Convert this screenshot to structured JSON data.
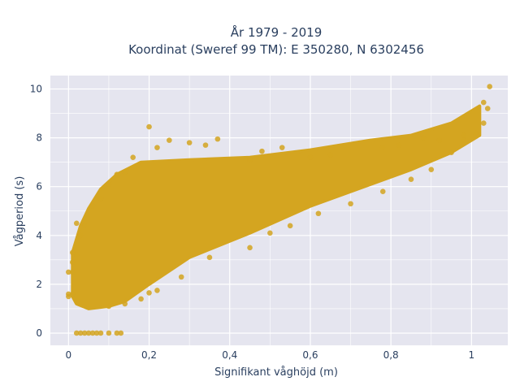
{
  "chart_data": {
    "type": "scatter",
    "title_line1": "År 1979 - 2019",
    "title_line2": "Koordinat (Sweref 99 TM): E 350280, N 6302456",
    "xlabel": "Signifikant våghöjd (m)",
    "ylabel": "Vågperiod (s)",
    "xlim": [
      -0.045,
      1.09
    ],
    "ylim": [
      -0.5,
      10.55
    ],
    "x_ticks": [
      {
        "value": 0,
        "label": "0"
      },
      {
        "value": 0.2,
        "label": "0,2"
      },
      {
        "value": 0.4,
        "label": "0,4"
      },
      {
        "value": 0.6,
        "label": "0,6"
      },
      {
        "value": 0.8,
        "label": "0,8"
      },
      {
        "value": 1,
        "label": "1"
      }
    ],
    "y_ticks": [
      {
        "value": 0,
        "label": "0"
      },
      {
        "value": 2,
        "label": "2"
      },
      {
        "value": 4,
        "label": "4"
      },
      {
        "value": 6,
        "label": "6"
      },
      {
        "value": 8,
        "label": "8"
      },
      {
        "value": 10,
        "label": "10"
      }
    ],
    "grid": true,
    "legend": "none",
    "colors": {
      "marker": "#d4a520",
      "plot_bg": "#e5e5ef",
      "grid": "#ffffff"
    },
    "point_cloud_outline": [
      [
        0.01,
        1.5
      ],
      [
        0.01,
        3.3
      ],
      [
        0.03,
        4.4
      ],
      [
        0.05,
        5.1
      ],
      [
        0.08,
        5.9
      ],
      [
        0.12,
        6.5
      ],
      [
        0.18,
        7.0
      ],
      [
        0.3,
        7.1
      ],
      [
        0.45,
        7.2
      ],
      [
        0.6,
        7.5
      ],
      [
        0.75,
        7.9
      ],
      [
        0.85,
        8.1
      ],
      [
        0.95,
        8.6
      ],
      [
        1.02,
        9.3
      ],
      [
        1.02,
        8.1
      ],
      [
        0.95,
        7.4
      ],
      [
        0.85,
        6.7
      ],
      [
        0.75,
        6.1
      ],
      [
        0.6,
        5.2
      ],
      [
        0.45,
        4.1
      ],
      [
        0.3,
        3.1
      ],
      [
        0.2,
        2.0
      ],
      [
        0.14,
        1.3
      ],
      [
        0.1,
        1.1
      ],
      [
        0.05,
        1.0
      ],
      [
        0.02,
        1.2
      ]
    ],
    "points": [
      [
        0.01,
        1.6
      ],
      [
        0.01,
        2.5
      ],
      [
        0.02,
        3.2
      ],
      [
        0.03,
        4.0
      ],
      [
        0.04,
        4.4
      ],
      [
        0.02,
        4.5
      ],
      [
        0.06,
        5.2
      ],
      [
        0.08,
        5.5
      ],
      [
        0.1,
        6.1
      ],
      [
        0.12,
        6.5
      ],
      [
        0.14,
        6.6
      ],
      [
        0.2,
        8.45
      ],
      [
        0.25,
        7.9
      ],
      [
        0.3,
        7.8
      ],
      [
        0.34,
        7.7
      ],
      [
        0.37,
        7.95
      ],
      [
        0.22,
        7.6
      ],
      [
        0.16,
        7.2
      ],
      [
        0.1,
        1.1
      ],
      [
        0.14,
        1.2
      ],
      [
        0.18,
        1.4
      ],
      [
        0.2,
        1.65
      ],
      [
        0.22,
        1.75
      ],
      [
        0.28,
        2.3
      ],
      [
        0.35,
        3.1
      ],
      [
        0.45,
        3.5
      ],
      [
        0.5,
        4.1
      ],
      [
        0.55,
        4.4
      ],
      [
        0.62,
        4.9
      ],
      [
        0.7,
        5.3
      ],
      [
        0.78,
        5.8
      ],
      [
        0.85,
        6.3
      ],
      [
        0.9,
        6.7
      ],
      [
        0.95,
        7.4
      ],
      [
        0.98,
        7.9
      ],
      [
        1.01,
        8.2
      ],
      [
        1.03,
        8.6
      ],
      [
        1.04,
        9.2
      ],
      [
        1.03,
        9.45
      ],
      [
        1.045,
        10.1
      ],
      [
        0.98,
        8.1
      ],
      [
        0.92,
        7.9
      ],
      [
        0.88,
        8.0
      ],
      [
        0.82,
        7.7
      ],
      [
        0.78,
        7.6
      ],
      [
        0.6,
        7.2
      ],
      [
        0.53,
        7.6
      ],
      [
        0.45,
        7.1
      ],
      [
        0.48,
        7.45
      ],
      [
        0.65,
        7.3
      ],
      [
        0.02,
        0.0
      ],
      [
        0.03,
        0.0
      ],
      [
        0.04,
        0.0
      ],
      [
        0.05,
        0.0
      ],
      [
        0.06,
        0.0
      ],
      [
        0.07,
        0.0
      ],
      [
        0.08,
        0.0
      ],
      [
        0.1,
        0.0
      ],
      [
        0.12,
        0.0
      ],
      [
        0.13,
        0.0
      ],
      [
        0.0,
        1.5
      ],
      [
        0.0,
        1.6
      ],
      [
        0.01,
        2.9
      ],
      [
        0.01,
        3.3
      ],
      [
        0.0,
        2.5
      ]
    ]
  }
}
